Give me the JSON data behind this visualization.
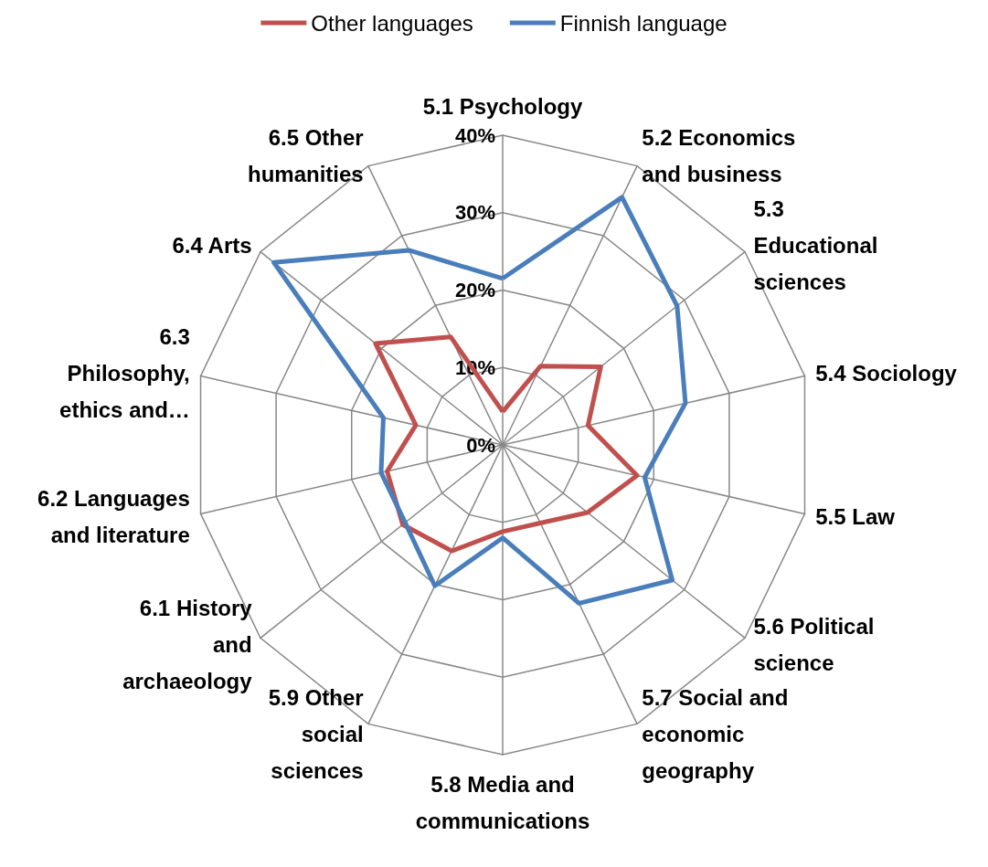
{
  "chart_data": {
    "type": "radar",
    "categories": [
      "5.1 Psychology",
      "5.2 Economics and business",
      "5.3 Educational sciences",
      "5.4 Sociology",
      "5.5 Law",
      "5.6 Political science",
      "5.7 Social and economic geography",
      "5.8 Media and communications",
      "5.9 Other social sciences",
      "6.1 History and archaeology",
      "6.2 Languages and literature",
      "6.3 Philosophy, ethics and…",
      "6.4 Arts",
      "6.5 Other humanities"
    ],
    "series": [
      {
        "name": "Other languages",
        "color": "#c0504d",
        "values": [
          4.3,
          11.3,
          16.2,
          11.3,
          17.8,
          14,
          11.2,
          11.2,
          15.2,
          16.5,
          15.3,
          11.5,
          21,
          15.5
        ]
      },
      {
        "name": "Finnish language",
        "color": "#4a7ebb",
        "values": [
          21.5,
          35.5,
          28.8,
          24.2,
          18.8,
          28,
          22.7,
          12,
          20.2,
          16.1,
          16.1,
          15.8,
          37.8,
          27.9
        ]
      }
    ],
    "ylim": [
      0,
      40
    ],
    "yticks": [
      {
        "value": 0,
        "label": "0%"
      },
      {
        "value": 10,
        "label": "10%"
      },
      {
        "value": 20,
        "label": "20%"
      },
      {
        "value": 30,
        "label": "30%"
      },
      {
        "value": 40,
        "label": "40%"
      }
    ],
    "legend": "top",
    "marker": "none",
    "line_style": "solid"
  }
}
